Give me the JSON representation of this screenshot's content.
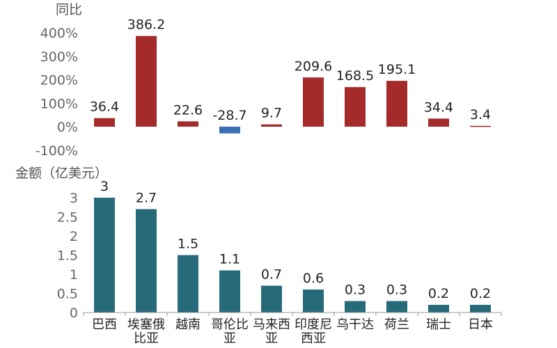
{
  "chart_data": [
    {
      "type": "bar",
      "ylabel": "同比",
      "ylim": [
        -100,
        400
      ],
      "yticks": [
        "400%",
        "300%",
        "200%",
        "100%",
        "0%",
        "-100%"
      ],
      "tick_values": [
        400,
        300,
        200,
        100,
        0,
        -100
      ],
      "categories": [
        "巴西",
        "埃塞俄比亚",
        "越南",
        "哥伦比亚",
        "马来西亚",
        "印度尼西亚",
        "乌干达",
        "荷兰",
        "瑞士",
        "日本"
      ],
      "values": [
        36.4,
        386.2,
        22.6,
        -28.7,
        9.7,
        209.6,
        168.5,
        195.1,
        34.4,
        3.4
      ],
      "value_labels": [
        "36.4",
        "386.2",
        "22.6",
        "-28.7",
        "9.7",
        "209.6",
        "168.5",
        "195.1",
        "34.4",
        "3.4"
      ],
      "colors": {
        "positive": "#a52a2a",
        "negative": "#3b6fb6"
      },
      "grid": false
    },
    {
      "type": "bar",
      "ylabel": "金额（亿美元）",
      "ylim": [
        0,
        3
      ],
      "yticks": [
        "3",
        "2.5",
        "2",
        "1.5",
        "1",
        "0.5",
        "0"
      ],
      "tick_values": [
        3,
        2.5,
        2,
        1.5,
        1,
        0.5,
        0
      ],
      "categories": [
        "巴西",
        "埃塞俄比亚",
        "越南",
        "哥伦比亚",
        "马来西亚",
        "印度尼西亚",
        "乌干达",
        "荷兰",
        "瑞士",
        "日本"
      ],
      "category_labels": [
        [
          "巴西"
        ],
        [
          "埃塞俄",
          "比亚"
        ],
        [
          "越南"
        ],
        [
          "哥伦比",
          "亚"
        ],
        [
          "马来西",
          "亚"
        ],
        [
          "印度尼",
          "西亚"
        ],
        [
          "乌干达"
        ],
        [
          "荷兰"
        ],
        [
          "瑞士"
        ],
        [
          "日本"
        ]
      ],
      "values": [
        3,
        2.7,
        1.5,
        1.1,
        0.7,
        0.6,
        0.3,
        0.3,
        0.2,
        0.2
      ],
      "value_labels": [
        "3",
        "2.7",
        "1.5",
        "1.1",
        "0.7",
        "0.6",
        "0.3",
        "0.3",
        "0.2",
        "0.2"
      ],
      "colors": {
        "bar": "#276a7a"
      },
      "grid": false
    }
  ]
}
